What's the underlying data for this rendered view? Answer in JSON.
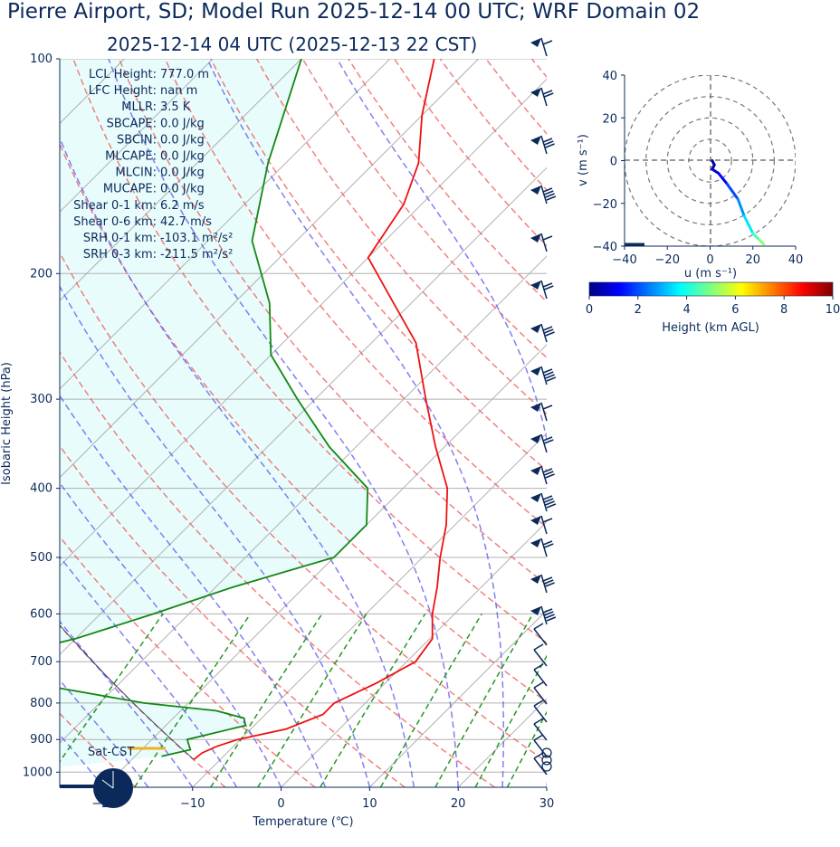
{
  "header": {
    "title": "Pierre Airport, SD; Model Run 2025-12-14 00 UTC; WRF Domain 02",
    "subtitle": "2025-12-14 04 UTC  (2025-12-13 22 CST)"
  },
  "skewt": {
    "ylabel": "Isobaric Height (hPa)",
    "xlabel": "Temperature (℃)",
    "pressure_ticks": [
      "100",
      "200",
      "300",
      "400",
      "500",
      "600",
      "700",
      "800",
      "900",
      "1000"
    ],
    "temp_ticks": [
      "−20",
      "−10",
      "0",
      "10",
      "20",
      "30"
    ],
    "info": [
      {
        "label": "LCL Height:",
        "value": "777.0 m"
      },
      {
        "label": "LFC Height:",
        "value": "nan m"
      },
      {
        "label": "MLLR:",
        "value": "3.5 K"
      },
      {
        "label": "SBCAPE:",
        "value": "0.0 J/kg"
      },
      {
        "label": "SBCIN:",
        "value": "0.0 J/kg"
      },
      {
        "label": "MLCAPE:",
        "value": "0.0 J/kg"
      },
      {
        "label": "MLCIN:",
        "value": "0.0 J/kg"
      },
      {
        "label": "MUCAPE:",
        "value": "0.0 J/kg"
      },
      {
        "label": "Shear 0-1 km:",
        "value": "6.2 m/s"
      },
      {
        "label": "Shear 0-6 km:",
        "value": "42.7 m/s"
      },
      {
        "label": "SRH 0-1 km:",
        "value": "-103.1 m²/s²"
      },
      {
        "label": "SRH 0-3 km:",
        "value": "-211.5 m²/s²"
      }
    ],
    "sat_label": "Sat-CST"
  },
  "hodograph": {
    "xlabel": "u (m s⁻¹)",
    "ylabel": "v (m s⁻¹)",
    "ticks": [
      "−40",
      "−20",
      "0",
      "20",
      "40"
    ],
    "colorbar_label": "Height (km AGL)",
    "colorbar_ticks": [
      "0",
      "2",
      "4",
      "6",
      "8",
      "10"
    ]
  },
  "chart_data": {
    "type": "line",
    "skewt": {
      "xlim": [
        -25,
        30
      ],
      "ylim": [
        1050,
        100
      ],
      "temperature_profile": [
        {
          "p": 960,
          "t": -13
        },
        {
          "p": 940,
          "t": -12.8
        },
        {
          "p": 920,
          "t": -11.9
        },
        {
          "p": 900,
          "t": -10.3
        },
        {
          "p": 870,
          "t": -6
        },
        {
          "p": 830,
          "t": -3.5
        },
        {
          "p": 800,
          "t": -3.5
        },
        {
          "p": 750,
          "t": -1
        },
        {
          "p": 700,
          "t": 1
        },
        {
          "p": 650,
          "t": 0.3
        },
        {
          "p": 600,
          "t": -2.5
        },
        {
          "p": 550,
          "t": -5
        },
        {
          "p": 500,
          "t": -8
        },
        {
          "p": 450,
          "t": -11
        },
        {
          "p": 400,
          "t": -15
        },
        {
          "p": 350,
          "t": -21
        },
        {
          "p": 300,
          "t": -27.5
        },
        {
          "p": 250,
          "t": -35
        },
        {
          "p": 220,
          "t": -42
        },
        {
          "p": 190,
          "t": -50
        },
        {
          "p": 160,
          "t": -52
        },
        {
          "p": 140,
          "t": -55
        },
        {
          "p": 120,
          "t": -60
        },
        {
          "p": 100,
          "t": -65
        }
      ],
      "dewpoint_profile": [
        {
          "p": 950,
          "t": -17
        },
        {
          "p": 930,
          "t": -14.5
        },
        {
          "p": 900,
          "t": -16
        },
        {
          "p": 860,
          "t": -11
        },
        {
          "p": 840,
          "t": -12
        },
        {
          "p": 820,
          "t": -16
        },
        {
          "p": 800,
          "t": -25
        },
        {
          "p": 760,
          "t": -37
        },
        {
          "p": 700,
          "t": -48
        },
        {
          "p": 650,
          "t": -40
        },
        {
          "p": 600,
          "t": -34
        },
        {
          "p": 550,
          "t": -28
        },
        {
          "p": 500,
          "t": -20
        },
        {
          "p": 450,
          "t": -20
        },
        {
          "p": 400,
          "t": -24
        },
        {
          "p": 350,
          "t": -33
        },
        {
          "p": 300,
          "t": -42
        },
        {
          "p": 260,
          "t": -50
        },
        {
          "p": 220,
          "t": -56
        },
        {
          "p": 180,
          "t": -65
        },
        {
          "p": 140,
          "t": -72
        },
        {
          "p": 100,
          "t": -80
        }
      ]
    },
    "hodograph": {
      "xlim": [
        -40,
        40
      ],
      "ylim": [
        -40,
        40
      ],
      "colorbar_range": [
        0,
        10
      ],
      "points": [
        {
          "u": 1,
          "v": 0,
          "h": 0.1
        },
        {
          "u": 2,
          "v": -2,
          "h": 0.3
        },
        {
          "u": 1,
          "v": -4,
          "h": 0.6
        },
        {
          "u": 4,
          "v": -6,
          "h": 1.0
        },
        {
          "u": 8,
          "v": -11,
          "h": 1.6
        },
        {
          "u": 13,
          "v": -18,
          "h": 2.3
        },
        {
          "u": 16,
          "v": -26,
          "h": 3.0
        },
        {
          "u": 20,
          "v": -34,
          "h": 4.0
        },
        {
          "u": 23,
          "v": -37,
          "h": 4.8
        },
        {
          "u": 25,
          "v": -39,
          "h": 5.5
        }
      ]
    }
  }
}
